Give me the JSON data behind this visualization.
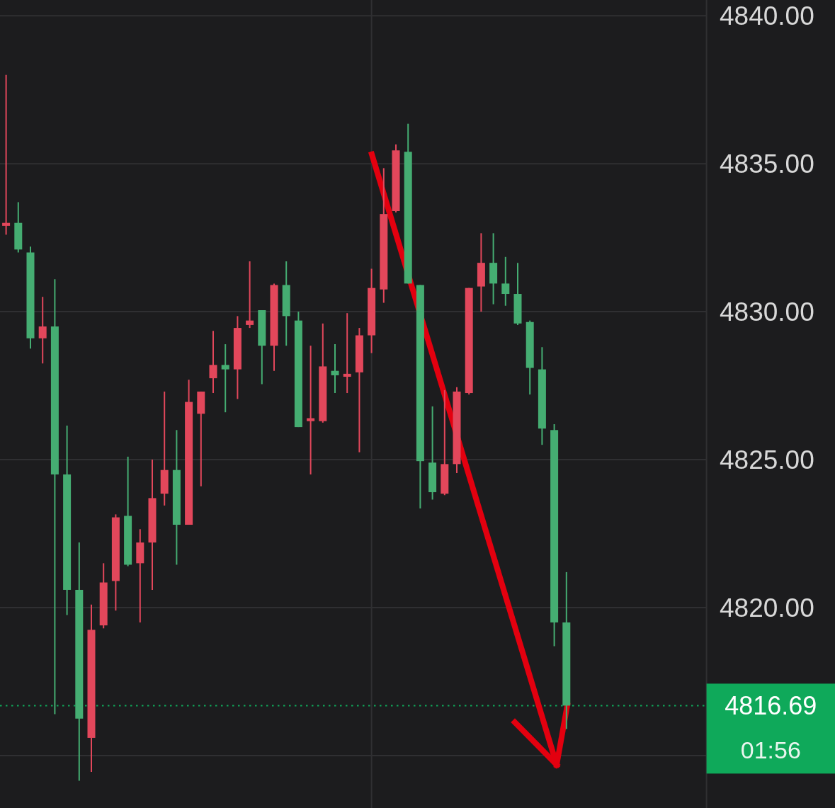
{
  "chart_data": {
    "type": "candlestick",
    "categories": [
      null,
      null,
      null,
      null,
      null,
      null,
      null,
      null,
      null,
      null,
      null,
      null,
      null,
      null,
      null,
      null,
      null,
      null,
      null,
      null,
      null,
      null,
      null,
      null,
      null,
      null,
      null,
      null,
      null,
      null,
      null,
      null,
      null,
      null,
      null,
      null,
      null,
      null,
      null,
      null,
      null,
      null,
      null,
      null,
      null,
      null,
      null,
      null,
      null,
      null,
      null,
      null,
      null,
      null,
      null,
      null,
      null,
      null
    ],
    "ohlc": [
      [
        4832.9,
        4838.0,
        4832.6,
        4833.0
      ],
      [
        4833.0,
        4833.7,
        4832.0,
        4832.1
      ],
      [
        4832.0,
        4832.2,
        4828.75,
        4829.1
      ],
      [
        4829.1,
        4830.5,
        4828.25,
        4829.5
      ],
      [
        4829.5,
        4831.1,
        4816.4,
        4824.5
      ],
      [
        4824.5,
        4826.15,
        4819.75,
        4820.6
      ],
      [
        4820.6,
        4822.2,
        4814.15,
        4816.25
      ],
      [
        4815.6,
        4820.1,
        4814.45,
        4819.25
      ],
      [
        4819.4,
        4821.5,
        4819.3,
        4820.85
      ],
      [
        4820.9,
        4823.15,
        4819.9,
        4823.05
      ],
      [
        4823.1,
        4825.1,
        4821.4,
        4821.45
      ],
      [
        4821.5,
        4822.65,
        4819.5,
        4822.2
      ],
      [
        4822.2,
        4825.0,
        4820.6,
        4823.7
      ],
      [
        4823.85,
        4827.3,
        4823.45,
        4824.65
      ],
      [
        4824.65,
        4826.0,
        4821.45,
        4822.8
      ],
      [
        4822.8,
        4827.7,
        4822.8,
        4826.95
      ],
      [
        4826.55,
        4827.3,
        4824.1,
        4827.3
      ],
      [
        4827.75,
        4829.35,
        4827.25,
        4828.2
      ],
      [
        4828.2,
        4828.9,
        4826.6,
        4828.05
      ],
      [
        4828.05,
        4829.85,
        4827.05,
        4829.45
      ],
      [
        4829.55,
        4831.7,
        4829.45,
        4829.7
      ],
      [
        4830.05,
        4830.05,
        4827.55,
        4828.85
      ],
      [
        4828.85,
        4830.95,
        4828.0,
        4830.9
      ],
      [
        4830.9,
        4831.7,
        4828.85,
        4829.85
      ],
      [
        4829.7,
        4830.0,
        4826.1,
        4826.1
      ],
      [
        4826.3,
        4828.85,
        4824.5,
        4826.4
      ],
      [
        4826.3,
        4829.6,
        4826.25,
        4828.15
      ],
      [
        4828.0,
        4828.9,
        4827.25,
        4827.85
      ],
      [
        4827.8,
        4829.95,
        4827.25,
        4827.9
      ],
      [
        4827.95,
        4829.45,
        4825.25,
        4829.2
      ],
      [
        4829.2,
        4831.45,
        4828.6,
        4830.8
      ],
      [
        4830.75,
        4834.85,
        4830.3,
        4833.3
      ],
      [
        4833.4,
        4835.65,
        4833.35,
        4835.45
      ],
      [
        4835.4,
        4836.35,
        4830.95,
        4830.95
      ],
      [
        4830.9,
        4830.9,
        4823.35,
        4824.95
      ],
      [
        4824.9,
        4826.8,
        4823.65,
        4823.9
      ],
      [
        4823.85,
        4827.35,
        4823.8,
        4824.85
      ],
      [
        4824.85,
        4827.45,
        4824.55,
        4827.3
      ],
      [
        4827.25,
        4830.8,
        4827.2,
        4830.8
      ],
      [
        4830.85,
        4832.65,
        4830.0,
        4831.65
      ],
      [
        4831.65,
        4832.65,
        4830.25,
        4830.95
      ],
      [
        4830.95,
        4831.85,
        4830.2,
        4830.6
      ],
      [
        4830.6,
        4831.65,
        4829.55,
        4829.6
      ],
      [
        4829.65,
        4829.7,
        4827.2,
        4828.1
      ],
      [
        4828.05,
        4828.8,
        4825.5,
        4826.05
      ],
      [
        4826.0,
        4826.2,
        4818.7,
        4819.5
      ],
      [
        4819.5,
        4821.2,
        4815.9,
        4816.69
      ],
      null,
      null,
      null,
      null,
      null,
      null,
      null,
      null,
      null,
      null,
      null
    ],
    "colors": [
      "#e2475b",
      "#45ad72",
      "#45ad72",
      "#e2475b",
      "#45ad72",
      "#45ad72",
      "#45ad72",
      "#e2475b",
      "#e2475b",
      "#e2475b",
      "#45ad72",
      "#e2475b",
      "#e2475b",
      "#e2475b",
      "#45ad72",
      "#e2475b",
      "#e2475b",
      "#e2475b",
      "#45ad72",
      "#e2475b",
      "#e2475b",
      "#45ad72",
      "#e2475b",
      "#45ad72",
      "#45ad72",
      "#e2475b",
      "#e2475b",
      "#45ad72",
      "#e2475b",
      "#e2475b",
      "#e2475b",
      "#e2475b",
      "#e2475b",
      "#45ad72",
      "#45ad72",
      "#45ad72",
      "#e2475b",
      "#e2475b",
      "#e2475b",
      "#e2475b",
      "#45ad72",
      "#45ad72",
      "#45ad72",
      "#45ad72",
      "#45ad72",
      "#45ad72",
      "#45ad72",
      null,
      null,
      null,
      null,
      null,
      null,
      null,
      null,
      null,
      null,
      null
    ],
    "ylim": [
      4813.23,
      4840.53
    ],
    "yticks": [
      {
        "value": 4815,
        "label": null
      },
      {
        "value": 4820,
        "label": "4820.00"
      },
      {
        "value": 4825,
        "label": "4825.00"
      },
      {
        "value": 4830,
        "label": "4830.00"
      },
      {
        "value": 4835,
        "label": "4835.00"
      },
      {
        "value": 4840,
        "label": "4840.00"
      }
    ],
    "tick_labels": "y",
    "grid": true,
    "ref_lines": [
      {
        "axis": "y",
        "value": 4816.69,
        "label": "4816.69",
        "color": "#0fa95a",
        "line_style": "dotted"
      }
    ],
    "annotations": [
      "01:56"
    ]
  }
}
